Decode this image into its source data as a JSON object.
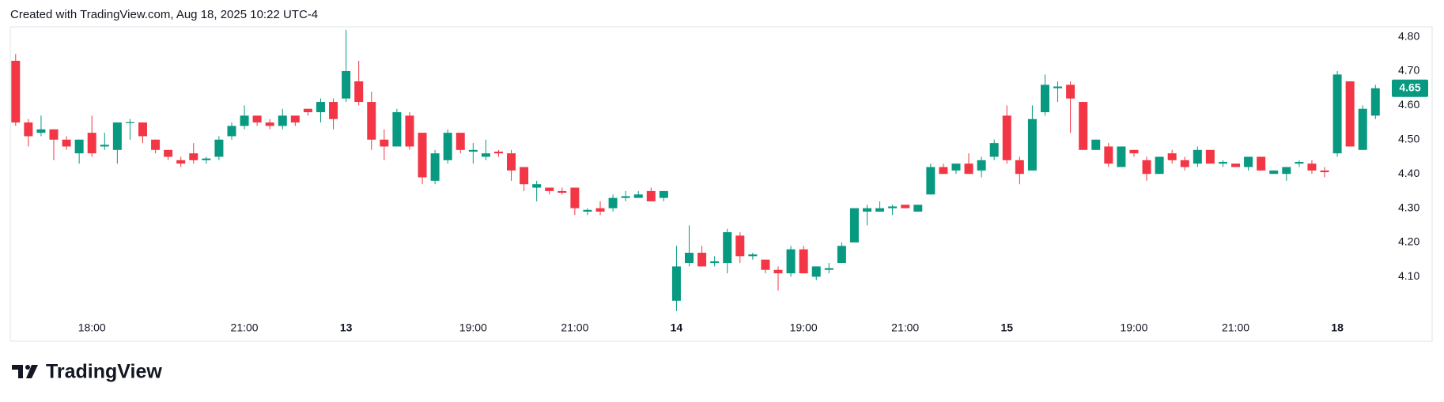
{
  "header": "Created with TradingView.com, Aug 18, 2025 10:22 UTC-4",
  "brand": "TradingView",
  "chart_data": {
    "type": "candlestick",
    "up_color": "#089981",
    "down_color": "#f23645",
    "grid": false,
    "last_price": 4.65,
    "ylim": [
      3.912,
      4.829
    ],
    "yticks": [
      {
        "value": 4.1,
        "label": "4.10"
      },
      {
        "value": 4.2,
        "label": "4.20"
      },
      {
        "value": 4.3,
        "label": "4.30"
      },
      {
        "value": 4.4,
        "label": "4.40"
      },
      {
        "value": 4.5,
        "label": "4.50"
      },
      {
        "value": 4.6,
        "label": "4.60"
      },
      {
        "value": 4.7,
        "label": "4.70"
      },
      {
        "value": 4.8,
        "label": "4.80"
      }
    ],
    "categories": [
      null,
      null,
      null,
      null,
      null,
      null,
      "18:00",
      null,
      null,
      null,
      null,
      null,
      null,
      null,
      null,
      null,
      null,
      null,
      "21:00",
      null,
      null,
      null,
      null,
      null,
      null,
      null,
      "13",
      null,
      null,
      null,
      null,
      null,
      null,
      null,
      null,
      null,
      "19:00",
      null,
      null,
      null,
      null,
      null,
      null,
      null,
      "21:00",
      null,
      null,
      null,
      null,
      null,
      null,
      null,
      "14",
      null,
      null,
      null,
      null,
      null,
      null,
      null,
      null,
      null,
      "19:00",
      null,
      null,
      null,
      null,
      null,
      null,
      null,
      "21:00",
      null,
      null,
      null,
      null,
      null,
      null,
      null,
      "15",
      null,
      null,
      null,
      null,
      null,
      null,
      null,
      null,
      null,
      "19:00",
      null,
      null,
      null,
      null,
      null,
      null,
      null,
      "21:00",
      null,
      null,
      null,
      null,
      null,
      null,
      null,
      "18",
      null,
      null,
      null
    ],
    "open": [
      4.73,
      4.55,
      4.52,
      4.53,
      4.5,
      4.46,
      4.52,
      4.48,
      4.47,
      4.549,
      4.55,
      4.5,
      4.47,
      4.44,
      4.46,
      4.44,
      4.45,
      4.51,
      4.54,
      4.57,
      4.55,
      4.54,
      4.57,
      4.59,
      4.58,
      4.61,
      4.62,
      4.67,
      4.61,
      4.5,
      4.48,
      4.57,
      4.52,
      4.38,
      4.44,
      4.52,
      4.465,
      4.45,
      4.465,
      4.46,
      4.42,
      4.36,
      4.36,
      4.35,
      4.36,
      4.29,
      4.3,
      4.3,
      4.33,
      4.33,
      4.35,
      4.33,
      4.03,
      4.14,
      4.17,
      4.14,
      4.14,
      4.22,
      4.16,
      4.15,
      4.12,
      4.11,
      4.18,
      4.1,
      4.12,
      4.14,
      4.2,
      4.29,
      4.29,
      4.3,
      4.31,
      4.29,
      4.34,
      4.42,
      4.41,
      4.43,
      4.41,
      4.45,
      4.57,
      4.44,
      4.41,
      4.58,
      4.65,
      4.66,
      4.61,
      4.47,
      4.48,
      4.42,
      4.47,
      4.44,
      4.4,
      4.46,
      4.44,
      4.43,
      4.47,
      4.43,
      4.43,
      4.42,
      4.45,
      4.4,
      4.4,
      4.43,
      4.43,
      4.41,
      4.46,
      4.67,
      4.47,
      4.57
    ],
    "high": [
      4.75,
      4.56,
      4.57,
      4.53,
      4.51,
      4.5,
      4.57,
      4.52,
      4.55,
      4.56,
      4.55,
      4.5,
      4.47,
      4.45,
      4.49,
      4.45,
      4.51,
      4.55,
      4.6,
      4.57,
      4.56,
      4.59,
      4.57,
      4.59,
      4.62,
      4.62,
      4.82,
      4.73,
      4.64,
      4.53,
      4.59,
      4.58,
      4.52,
      4.47,
      4.53,
      4.52,
      4.49,
      4.5,
      4.47,
      4.47,
      4.42,
      4.38,
      4.36,
      4.36,
      4.36,
      4.3,
      4.32,
      4.34,
      4.35,
      4.35,
      4.36,
      4.35,
      4.19,
      4.25,
      4.19,
      4.16,
      4.24,
      4.23,
      4.17,
      4.15,
      4.13,
      4.19,
      4.19,
      4.13,
      4.14,
      4.2,
      4.3,
      4.31,
      4.32,
      4.31,
      4.31,
      4.31,
      4.43,
      4.43,
      4.43,
      4.46,
      4.45,
      4.5,
      4.6,
      4.45,
      4.6,
      4.69,
      4.67,
      4.67,
      4.61,
      4.5,
      4.49,
      4.48,
      4.47,
      4.45,
      4.45,
      4.47,
      4.45,
      4.48,
      4.47,
      4.44,
      4.43,
      4.45,
      4.45,
      4.41,
      4.42,
      4.44,
      4.44,
      4.42,
      4.7,
      4.67,
      4.6,
      4.66
    ],
    "low": [
      4.54,
      4.48,
      4.51,
      4.44,
      4.47,
      4.43,
      4.45,
      4.47,
      4.43,
      4.5,
      4.49,
      4.46,
      4.44,
      4.42,
      4.43,
      4.43,
      4.44,
      4.5,
      4.53,
      4.54,
      4.53,
      4.53,
      4.54,
      4.57,
      4.55,
      4.53,
      4.61,
      4.6,
      4.47,
      4.44,
      4.48,
      4.47,
      4.37,
      4.37,
      4.43,
      4.46,
      4.43,
      4.44,
      4.45,
      4.38,
      4.35,
      4.32,
      4.34,
      4.34,
      4.28,
      4.28,
      4.28,
      4.29,
      4.32,
      4.33,
      4.32,
      4.32,
      4.0,
      4.13,
      4.13,
      4.13,
      4.11,
      4.14,
      4.15,
      4.11,
      4.06,
      4.1,
      4.11,
      4.09,
      4.11,
      4.14,
      4.2,
      4.25,
      4.29,
      4.28,
      4.3,
      4.29,
      4.34,
      4.4,
      4.4,
      4.4,
      4.39,
      4.44,
      4.43,
      4.37,
      4.41,
      4.57,
      4.61,
      4.52,
      4.47,
      4.47,
      4.42,
      4.42,
      4.45,
      4.38,
      4.4,
      4.43,
      4.41,
      4.42,
      4.43,
      4.42,
      4.42,
      4.41,
      4.41,
      4.4,
      4.38,
      4.42,
      4.4,
      4.39,
      4.45,
      4.48,
      4.47,
      4.56
    ],
    "close": [
      4.55,
      4.51,
      4.53,
      4.5,
      4.48,
      4.5,
      4.46,
      4.485,
      4.55,
      4.551,
      4.51,
      4.47,
      4.45,
      4.43,
      4.44,
      4.445,
      4.5,
      4.54,
      4.57,
      4.55,
      4.54,
      4.57,
      4.55,
      4.58,
      4.61,
      4.56,
      4.7,
      4.61,
      4.5,
      4.48,
      4.58,
      4.48,
      4.39,
      4.46,
      4.52,
      4.47,
      4.47,
      4.46,
      4.46,
      4.41,
      4.37,
      4.37,
      4.35,
      4.345,
      4.3,
      4.295,
      4.29,
      4.33,
      4.335,
      4.34,
      4.32,
      4.35,
      4.13,
      4.17,
      4.13,
      4.145,
      4.23,
      4.16,
      4.165,
      4.12,
      4.11,
      4.18,
      4.11,
      4.13,
      4.125,
      4.19,
      4.3,
      4.3,
      4.3,
      4.305,
      4.3,
      4.31,
      4.42,
      4.4,
      4.43,
      4.4,
      4.44,
      4.49,
      4.44,
      4.4,
      4.56,
      4.66,
      4.655,
      4.62,
      4.47,
      4.5,
      4.43,
      4.48,
      4.46,
      4.4,
      4.45,
      4.44,
      4.42,
      4.47,
      4.43,
      4.435,
      4.42,
      4.45,
      4.41,
      4.41,
      4.42,
      4.435,
      4.41,
      4.405,
      4.69,
      4.48,
      4.59,
      4.65
    ]
  }
}
